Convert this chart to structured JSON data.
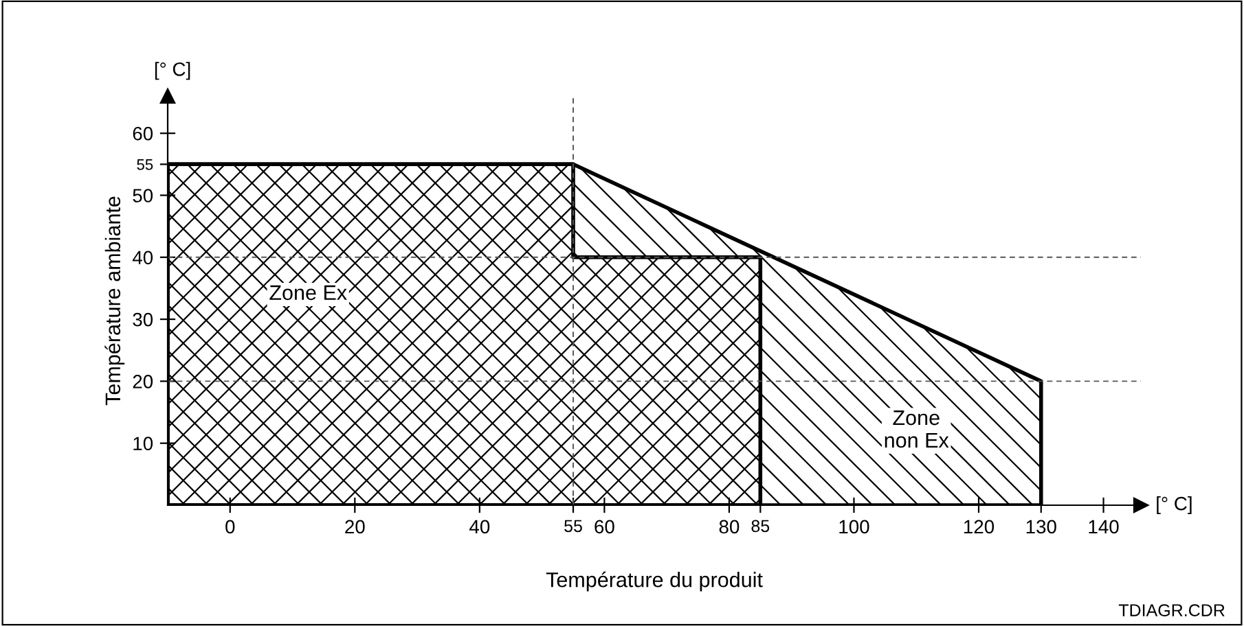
{
  "chart_data": {
    "type": "area",
    "xlabel": "Température du produit",
    "ylabel": "Température ambiante",
    "series": [
      {
        "name": "Zone\nnon Ex",
        "color": "#000000",
        "x": [
          -10,
          55,
          130,
          130
        ],
        "values": [
          55,
          55,
          20,
          0
        ]
      },
      {
        "name": "Zone Ex",
        "color": "#000000",
        "x": [
          -10,
          55,
          55,
          85,
          85
        ],
        "values": [
          55,
          55,
          40,
          40,
          0
        ]
      }
    ],
    "xlim": [
      -10,
      146
    ],
    "ylim": [
      0,
      66
    ],
    "xticks": [
      0,
      20,
      40,
      55,
      60,
      80,
      85,
      100,
      120,
      130,
      140
    ],
    "yticks": [
      10,
      20,
      30,
      40,
      50,
      55,
      60
    ],
    "ref_lines": [
      {
        "axis": "y",
        "value": 40,
        "line_style": "dashed",
        "color": "#555555"
      },
      {
        "axis": "y",
        "value": 20,
        "line_style": "dashed",
        "color": "#555555"
      },
      {
        "axis": "x",
        "value": 55,
        "line_style": "dashed",
        "color": "#555555"
      }
    ],
    "annotations": [
      "[° C]",
      "[° C]",
      "TDIAGR.CDR"
    ],
    "grid": false,
    "legend": false
  }
}
